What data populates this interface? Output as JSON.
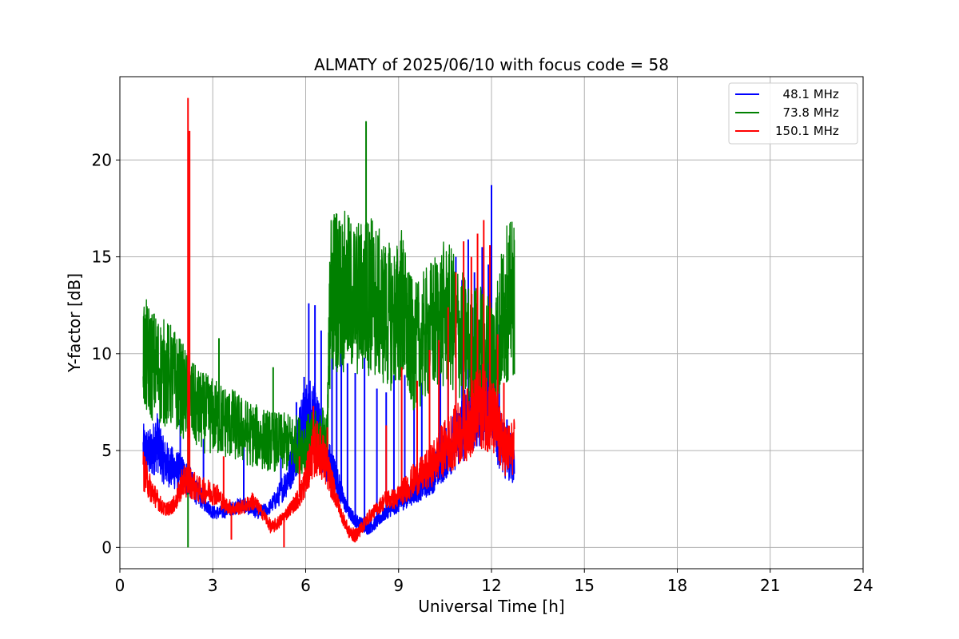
{
  "chart_data": {
    "type": "line",
    "title": "ALMATY of 2025/06/10 with focus code = 58",
    "xlabel": "Universal Time [h]",
    "ylabel": "Y-factor [dB]",
    "xlim": [
      0,
      24
    ],
    "ylim": [
      -1.1,
      24.3
    ],
    "xticks": [
      0,
      3,
      6,
      9,
      12,
      15,
      18,
      21,
      24
    ],
    "yticks": [
      0,
      5,
      10,
      15,
      20
    ],
    "grid": true,
    "legend_position": "top-right",
    "series": [
      {
        "name": "  48.1 MHz",
        "color": "#0000ff",
        "x": [
          0.75,
          1.0,
          1.2,
          1.4,
          1.6,
          1.8,
          2.0,
          2.2,
          2.5,
          2.8,
          3.0,
          3.3,
          3.6,
          3.9,
          4.2,
          4.5,
          4.8,
          5.1,
          5.4,
          5.6,
          5.8,
          6.0,
          6.2,
          6.4,
          6.6,
          6.8,
          7.0,
          7.2,
          7.4,
          7.6,
          7.8,
          8.0,
          8.2,
          8.4,
          8.6,
          8.8,
          9.0,
          9.2,
          9.4,
          9.6,
          9.8,
          10.0,
          10.2,
          10.4,
          10.6,
          10.8,
          11.0,
          11.2,
          11.4,
          11.6,
          11.8,
          12.0,
          12.2,
          12.4,
          12.75
        ],
        "y": [
          5.0,
          4.8,
          5.5,
          4.5,
          4.2,
          4.0,
          3.8,
          3.5,
          2.8,
          2.2,
          1.8,
          1.8,
          2.0,
          2.2,
          2.0,
          1.8,
          2.0,
          2.6,
          3.5,
          4.5,
          5.8,
          6.5,
          7.0,
          6.0,
          5.0,
          4.2,
          3.5,
          2.5,
          1.8,
          1.4,
          1.2,
          1.0,
          1.2,
          1.5,
          1.8,
          2.0,
          2.2,
          2.5,
          2.8,
          3.0,
          3.3,
          3.5,
          4.0,
          4.5,
          5.0,
          5.5,
          6.0,
          6.5,
          7.0,
          7.5,
          8.0,
          8.5,
          6.0,
          5.0,
          4.5
        ],
        "spikes": [
          {
            "x": 1.95,
            "y": 6.6
          },
          {
            "x": 2.7,
            "y": 5.6
          },
          {
            "x": 4.0,
            "y": 5.5
          },
          {
            "x": 5.2,
            "y": 6.1
          },
          {
            "x": 5.7,
            "y": 7.5
          },
          {
            "x": 5.95,
            "y": 8.8
          },
          {
            "x": 6.1,
            "y": 12.6
          },
          {
            "x": 6.3,
            "y": 12.5
          },
          {
            "x": 6.5,
            "y": 11.2
          },
          {
            "x": 6.85,
            "y": 11.9
          },
          {
            "x": 7.0,
            "y": 12.2
          },
          {
            "x": 7.15,
            "y": 10.5
          },
          {
            "x": 7.35,
            "y": 9.5
          },
          {
            "x": 7.6,
            "y": 9.0
          },
          {
            "x": 7.9,
            "y": 9.8
          },
          {
            "x": 8.3,
            "y": 8.2
          },
          {
            "x": 8.6,
            "y": 8.0
          },
          {
            "x": 8.85,
            "y": 8.9
          },
          {
            "x": 9.2,
            "y": 8.9
          },
          {
            "x": 9.5,
            "y": 7.5
          },
          {
            "x": 9.75,
            "y": 8.5
          },
          {
            "x": 10.0,
            "y": 8.8
          },
          {
            "x": 10.35,
            "y": 10.6
          },
          {
            "x": 10.6,
            "y": 11.6
          },
          {
            "x": 10.85,
            "y": 15.0
          },
          {
            "x": 11.05,
            "y": 13.8
          },
          {
            "x": 11.25,
            "y": 15.9
          },
          {
            "x": 11.45,
            "y": 14.2
          },
          {
            "x": 11.7,
            "y": 15.5
          },
          {
            "x": 11.9,
            "y": 14.6
          },
          {
            "x": 12.0,
            "y": 18.7
          },
          {
            "x": 12.25,
            "y": 11.5
          },
          {
            "x": 12.5,
            "y": 6.6
          }
        ]
      },
      {
        "name": "  73.8 MHz",
        "color": "#008000",
        "x": [
          0.75,
          1.0,
          1.3,
          1.6,
          1.9,
          2.2,
          2.5,
          2.8,
          3.1,
          3.4,
          3.7,
          4.0,
          4.3,
          4.6,
          4.9,
          5.2,
          5.5,
          5.8,
          6.1,
          6.4,
          6.7,
          6.8,
          7.0,
          7.3,
          7.6,
          7.9,
          8.1,
          8.3,
          8.6,
          8.9,
          9.1,
          9.3,
          9.5,
          9.8,
          10.1,
          10.4,
          10.7,
          11.0,
          11.3,
          11.6,
          11.9,
          12.1,
          12.3,
          12.5,
          12.75
        ],
        "y": [
          9.9,
          9.5,
          9.1,
          8.9,
          8.4,
          7.7,
          7.1,
          6.9,
          6.7,
          6.5,
          6.3,
          6.0,
          5.8,
          5.6,
          5.5,
          5.4,
          5.4,
          5.3,
          5.4,
          5.5,
          5.8,
          13.2,
          13.4,
          13.1,
          12.8,
          12.9,
          13.1,
          12.6,
          12.0,
          11.8,
          12.6,
          11.0,
          10.3,
          10.8,
          11.4,
          12.0,
          11.8,
          11.0,
          10.3,
          10.5,
          10.2,
          10.0,
          11.5,
          12.6,
          12.9
        ],
        "spikes": [
          {
            "x": 2.2,
            "y": 0.0
          },
          {
            "x": 3.2,
            "y": 10.8
          },
          {
            "x": 4.95,
            "y": 9.3
          },
          {
            "x": 6.8,
            "y": 14.6
          },
          {
            "x": 6.95,
            "y": 15.4
          },
          {
            "x": 7.95,
            "y": 22.0
          },
          {
            "x": 8.5,
            "y": 13.7
          },
          {
            "x": 9.15,
            "y": 15.4
          },
          {
            "x": 9.05,
            "y": 14.5
          },
          {
            "x": 9.9,
            "y": 12.9
          },
          {
            "x": 12.45,
            "y": 14.1
          }
        ]
      },
      {
        "name": "150.1 MHz",
        "color": "#ff0000",
        "x": [
          0.75,
          1.0,
          1.2,
          1.4,
          1.6,
          1.8,
          2.0,
          2.2,
          2.5,
          2.8,
          3.1,
          3.4,
          3.7,
          4.0,
          4.3,
          4.6,
          4.9,
          5.2,
          5.5,
          5.8,
          6.0,
          6.2,
          6.4,
          6.6,
          6.8,
          7.0,
          7.2,
          7.4,
          7.6,
          7.8,
          8.0,
          8.3,
          8.6,
          8.9,
          9.2,
          9.5,
          9.8,
          10.1,
          10.4,
          10.7,
          11.0,
          11.3,
          11.5,
          11.7,
          11.9,
          12.1,
          12.3,
          12.5,
          12.75
        ],
        "y": [
          4.0,
          3.0,
          2.5,
          2.0,
          2.0,
          2.3,
          3.3,
          3.5,
          3.0,
          2.9,
          2.8,
          2.2,
          2.0,
          2.1,
          2.4,
          1.8,
          1.0,
          1.4,
          2.0,
          2.6,
          3.5,
          4.8,
          5.2,
          4.5,
          3.5,
          2.5,
          1.5,
          0.8,
          0.6,
          1.0,
          1.5,
          2.0,
          2.5,
          2.5,
          3.0,
          3.5,
          3.8,
          4.3,
          5.0,
          5.5,
          6.0,
          6.5,
          7.0,
          7.3,
          7.0,
          6.5,
          5.5,
          5.0,
          5.2
        ],
        "spikes": [
          {
            "x": 2.2,
            "y": 23.2
          },
          {
            "x": 2.25,
            "y": 21.5
          },
          {
            "x": 3.35,
            "y": 4.7
          },
          {
            "x": 3.6,
            "y": 0.4
          },
          {
            "x": 5.3,
            "y": 0.0
          },
          {
            "x": 5.8,
            "y": 4.7
          },
          {
            "x": 6.25,
            "y": 7.3
          },
          {
            "x": 6.7,
            "y": 6.2
          },
          {
            "x": 8.6,
            "y": 6.3
          },
          {
            "x": 9.1,
            "y": 9.3
          },
          {
            "x": 9.6,
            "y": 8.6
          },
          {
            "x": 10.0,
            "y": 10.2
          },
          {
            "x": 10.3,
            "y": 10.7
          },
          {
            "x": 10.6,
            "y": 12.4
          },
          {
            "x": 10.85,
            "y": 14.2
          },
          {
            "x": 11.1,
            "y": 15.8
          },
          {
            "x": 11.35,
            "y": 15.0
          },
          {
            "x": 11.55,
            "y": 16.2
          },
          {
            "x": 11.75,
            "y": 16.9
          },
          {
            "x": 11.95,
            "y": 15.6
          },
          {
            "x": 12.2,
            "y": 11.0
          },
          {
            "x": 12.4,
            "y": 8.5
          }
        ]
      }
    ]
  }
}
